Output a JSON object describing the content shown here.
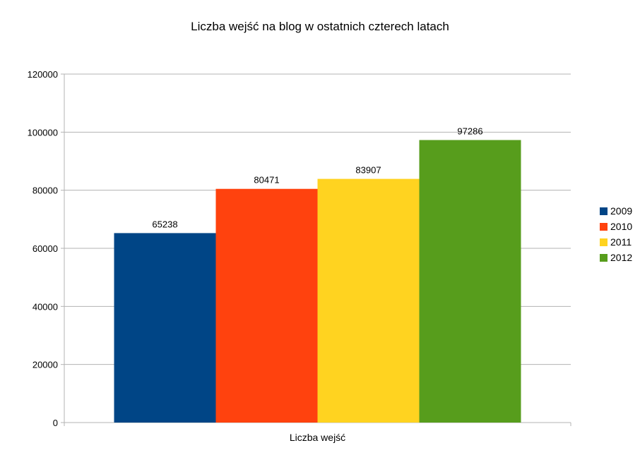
{
  "chart_data": {
    "type": "bar",
    "title": "Liczba wejść na blog w ostatnich czterech latach",
    "xlabel": "",
    "ylabel": "",
    "categories": [
      "Liczba wejść"
    ],
    "series": [
      {
        "name": "2009",
        "values": [
          65238
        ],
        "color": "#004586"
      },
      {
        "name": "2010",
        "values": [
          80471
        ],
        "color": "#ff420e"
      },
      {
        "name": "2011",
        "values": [
          83907
        ],
        "color": "#ffd320"
      },
      {
        "name": "2012",
        "values": [
          97286
        ],
        "color": "#579d1c"
      }
    ],
    "ylim": [
      0,
      120000
    ],
    "yticks": [
      "0",
      "20000",
      "40000",
      "60000",
      "80000",
      "100000",
      "120000"
    ],
    "data_labels": [
      "65238",
      "80471",
      "83907",
      "97286"
    ],
    "grid": true,
    "legend": "right"
  }
}
